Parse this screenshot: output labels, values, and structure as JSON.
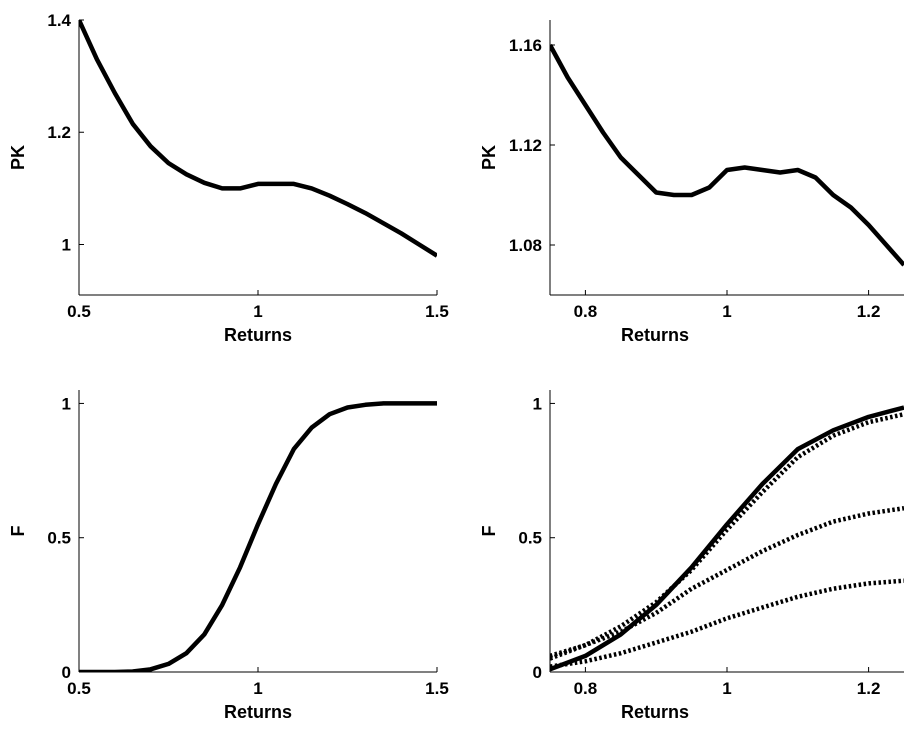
{
  "chart_data": [
    {
      "type": "line",
      "panel": "top-left",
      "xlabel": "Returns",
      "ylabel": "PK",
      "xlim": [
        0.5,
        1.5
      ],
      "ylim": [
        0.91,
        1.4
      ],
      "xticks": [
        0.5,
        1,
        1.5
      ],
      "xtick_labels": [
        "0.5",
        "1",
        "1.5"
      ],
      "yticks": [
        1,
        1.2,
        1.4
      ],
      "ytick_labels": [
        "1",
        "1.2",
        "1.4"
      ],
      "grid": false,
      "series": [
        {
          "style": "dash-dot with solid middle section",
          "x": [
            0.5,
            0.55,
            0.6,
            0.65,
            0.7,
            0.75,
            0.8,
            0.85,
            0.9,
            0.95,
            1.0,
            1.05,
            1.1,
            1.15,
            1.2,
            1.25,
            1.3,
            1.35,
            1.4,
            1.45,
            1.5
          ],
          "y": [
            1.4,
            1.33,
            1.27,
            1.215,
            1.175,
            1.145,
            1.125,
            1.11,
            1.1,
            1.1,
            1.108,
            1.108,
            1.108,
            1.1,
            1.087,
            1.072,
            1.056,
            1.038,
            1.02,
            1.0,
            0.98
          ]
        }
      ]
    },
    {
      "type": "line",
      "panel": "top-right",
      "xlabel": "Returns",
      "ylabel": "PK",
      "xlim": [
        0.75,
        1.25
      ],
      "ylim": [
        1.06,
        1.17
      ],
      "xticks": [
        0.8,
        1,
        1.2
      ],
      "xtick_labels": [
        "0.8",
        "1",
        "1.2"
      ],
      "yticks": [
        1.08,
        1.12,
        1.16
      ],
      "ytick_labels": [
        "1.08",
        "1.12",
        "1.16"
      ],
      "grid": false,
      "series": [
        {
          "style": "solid",
          "x": [
            0.75,
            0.775,
            0.8,
            0.825,
            0.85,
            0.875,
            0.9,
            0.925,
            0.95,
            0.975,
            1.0,
            1.025,
            1.05,
            1.075,
            1.1,
            1.125,
            1.15,
            1.175,
            1.2,
            1.225,
            1.25
          ],
          "y": [
            1.16,
            1.147,
            1.136,
            1.125,
            1.115,
            1.108,
            1.101,
            1.1,
            1.1,
            1.103,
            1.11,
            1.111,
            1.11,
            1.109,
            1.11,
            1.107,
            1.1,
            1.095,
            1.088,
            1.08,
            1.072
          ]
        }
      ]
    },
    {
      "type": "line",
      "panel": "bottom-left",
      "xlabel": "Returns",
      "ylabel": "F",
      "xlim": [
        0.5,
        1.5
      ],
      "ylim": [
        0,
        1.05
      ],
      "xticks": [
        0.5,
        1,
        1.5
      ],
      "xtick_labels": [
        "0.5",
        "1",
        "1.5"
      ],
      "yticks": [
        0,
        0.5,
        1
      ],
      "ytick_labels": [
        "0",
        "0.5",
        "1"
      ],
      "grid": false,
      "series": [
        {
          "style": "dash-dot tails with solid middle section",
          "x": [
            0.5,
            0.6,
            0.65,
            0.7,
            0.75,
            0.8,
            0.85,
            0.9,
            0.95,
            1.0,
            1.05,
            1.1,
            1.15,
            1.2,
            1.25,
            1.3,
            1.35,
            1.4,
            1.45,
            1.5
          ],
          "y": [
            0,
            0,
            0.002,
            0.01,
            0.03,
            0.07,
            0.14,
            0.25,
            0.39,
            0.55,
            0.7,
            0.83,
            0.91,
            0.96,
            0.985,
            0.995,
            1.0,
            1.0,
            1.0,
            1.0
          ]
        }
      ]
    },
    {
      "type": "line",
      "panel": "bottom-right",
      "xlabel": "Returns",
      "ylabel": "F",
      "xlim": [
        0.75,
        1.25
      ],
      "ylim": [
        0,
        1.05
      ],
      "xticks": [
        0.8,
        1,
        1.2
      ],
      "xtick_labels": [
        "0.8",
        "1",
        "1.2"
      ],
      "yticks": [
        0,
        0.5,
        1
      ],
      "ytick_labels": [
        "0",
        "0.5",
        "1"
      ],
      "grid": false,
      "series": [
        {
          "style": "solid",
          "x": [
            0.75,
            0.8,
            0.85,
            0.9,
            0.95,
            1.0,
            1.05,
            1.1,
            1.15,
            1.2,
            1.25
          ],
          "y": [
            0.01,
            0.06,
            0.14,
            0.25,
            0.39,
            0.55,
            0.7,
            0.83,
            0.9,
            0.95,
            0.985
          ]
        },
        {
          "style": "dotted",
          "x": [
            0.75,
            0.8,
            0.85,
            0.9,
            0.95,
            1.0,
            1.05,
            1.1,
            1.15,
            1.2,
            1.25
          ],
          "y": [
            0.05,
            0.1,
            0.17,
            0.26,
            0.38,
            0.53,
            0.67,
            0.8,
            0.88,
            0.93,
            0.96
          ]
        },
        {
          "style": "dotted",
          "x": [
            0.75,
            0.8,
            0.85,
            0.9,
            0.95,
            1.0,
            1.05,
            1.1,
            1.15,
            1.2,
            1.25
          ],
          "y": [
            0.06,
            0.1,
            0.15,
            0.22,
            0.31,
            0.38,
            0.45,
            0.51,
            0.56,
            0.59,
            0.61
          ]
        },
        {
          "style": "dotted",
          "x": [
            0.75,
            0.8,
            0.85,
            0.9,
            0.95,
            1.0,
            1.05,
            1.1,
            1.15,
            1.2,
            1.25
          ],
          "y": [
            0.02,
            0.04,
            0.07,
            0.11,
            0.15,
            0.2,
            0.24,
            0.28,
            0.31,
            0.33,
            0.34
          ]
        }
      ]
    }
  ]
}
